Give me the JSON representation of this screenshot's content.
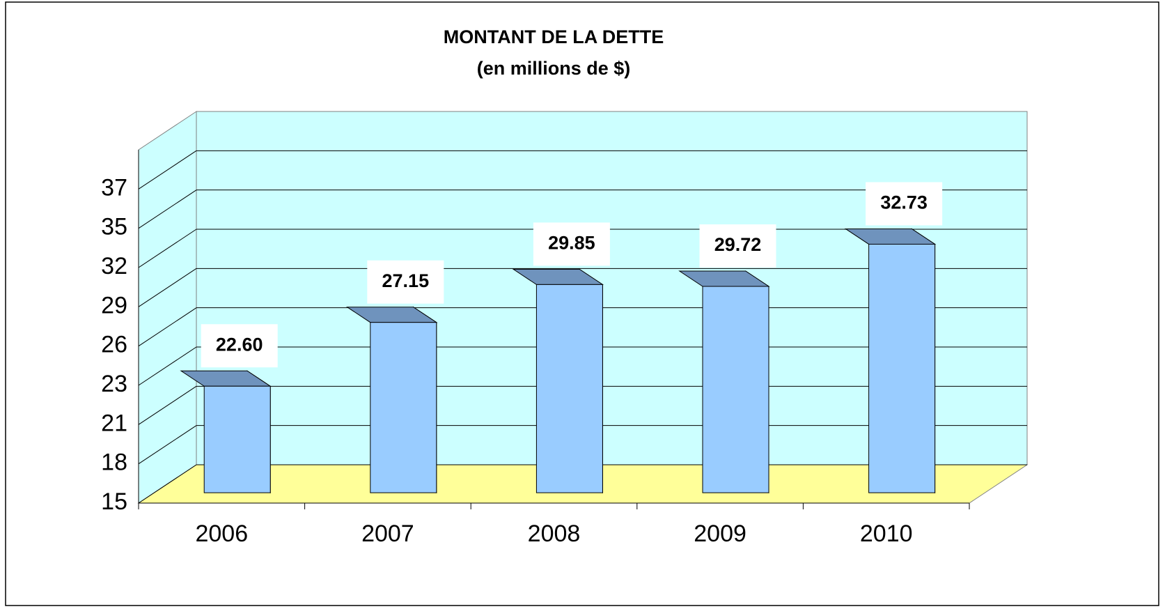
{
  "chart_data": {
    "type": "bar3d",
    "title": "MONTANT DE LA DETTE",
    "subtitle": "(en millions de $)",
    "categories": [
      "2006",
      "2007",
      "2008",
      "2009",
      "2010"
    ],
    "values": [
      22.6,
      27.15,
      29.85,
      29.72,
      32.73
    ],
    "value_labels": [
      "22.60",
      "27.15",
      "29.85",
      "29.72",
      "32.73"
    ],
    "color": "#99ccff",
    "ylim": [
      15,
      40.2
    ],
    "yticks": [
      15,
      {
        "value": 17.8,
        "label": "18"
      },
      {
        "value": 20.6,
        "label": "21"
      },
      {
        "value": 23.4,
        "label": "23"
      },
      {
        "value": 26.2,
        "label": "26"
      },
      {
        "value": 29,
        "label": "29"
      },
      {
        "value": 31.8,
        "label": "32"
      },
      {
        "value": 34.6,
        "label": "35"
      },
      {
        "value": 37.4,
        "label": "37"
      }
    ],
    "grid": true
  }
}
